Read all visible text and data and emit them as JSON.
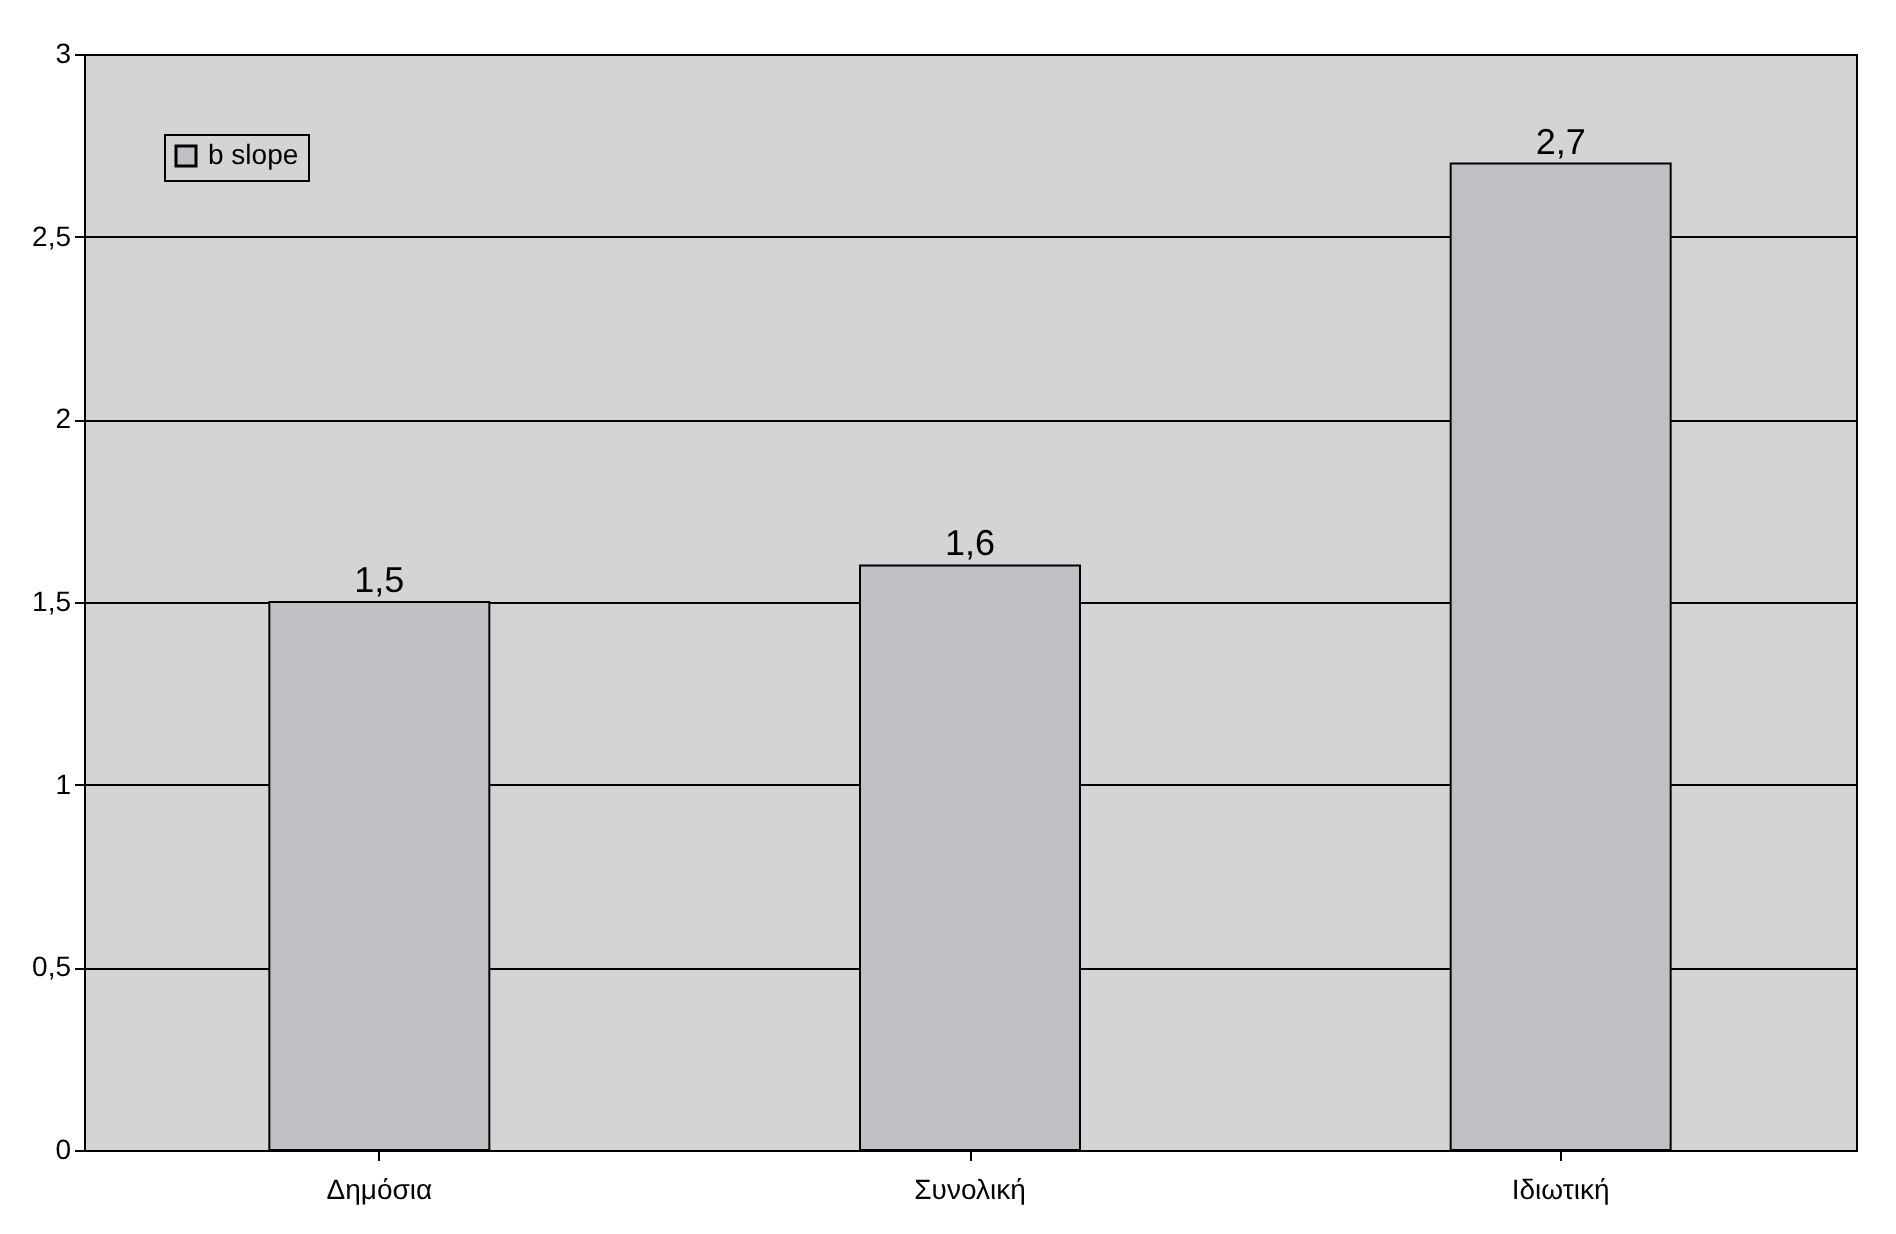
{
  "chart_data": {
    "type": "bar",
    "categories": [
      "Δημόσια",
      "Συνολική",
      "Ιδιωτική"
    ],
    "series": [
      {
        "name": "b slope",
        "color": "#c0c0c4",
        "values": [
          1.5,
          1.6,
          2.7
        ],
        "value_labels": [
          "1,5",
          "1,6",
          "2,7"
        ]
      }
    ],
    "ylim": [
      0,
      3
    ],
    "yticks": [
      0,
      {
        "value": 0.5,
        "label": "0,5"
      },
      1,
      {
        "value": 1.5,
        "label": "1,5"
      },
      2,
      {
        "value": 2.5,
        "label": "2,5"
      },
      3
    ],
    "grid": "y",
    "legend": "top left"
  }
}
